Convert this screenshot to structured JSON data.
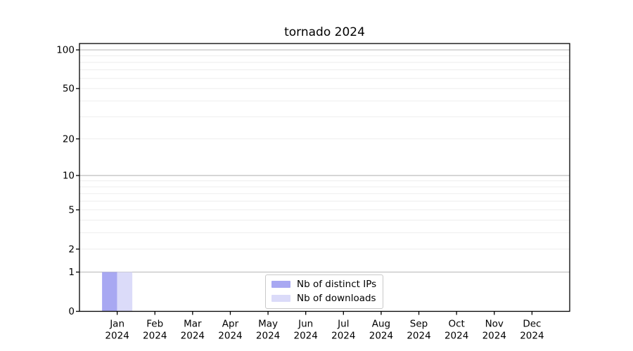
{
  "chart_data": {
    "type": "bar",
    "title": "tornado 2024",
    "categories": [
      "Jan",
      "Feb",
      "Mar",
      "Apr",
      "May",
      "Jun",
      "Jul",
      "Aug",
      "Sep",
      "Oct",
      "Nov",
      "Dec"
    ],
    "year_label": "2024",
    "series": [
      {
        "name": "Nb of distinct IPs",
        "color": "#a8a8f2",
        "values": [
          1,
          0,
          0,
          0,
          0,
          0,
          0,
          0,
          0,
          0,
          0,
          0
        ]
      },
      {
        "name": "Nb of downloads",
        "color": "#dbdbf9",
        "values": [
          1,
          0,
          0,
          0,
          0,
          0,
          0,
          0,
          0,
          0,
          0,
          0
        ]
      }
    ],
    "yscale": "log1p",
    "ylim": [
      0,
      112
    ],
    "ytick_labels": [
      0,
      1,
      2,
      5,
      10,
      20,
      50,
      100
    ],
    "grid": {
      "on": true,
      "major_values": [
        1,
        10,
        100
      ],
      "minor_values": [
        2,
        3,
        4,
        5,
        6,
        7,
        8,
        9,
        20,
        30,
        40,
        50,
        60,
        70,
        80,
        90
      ]
    },
    "legend_position": "lower center",
    "colors": {
      "major_grid": "#bdbdbd",
      "minor_grid": "#ededed",
      "spine": "#000000",
      "text": "#000000",
      "background": "#ffffff"
    }
  }
}
